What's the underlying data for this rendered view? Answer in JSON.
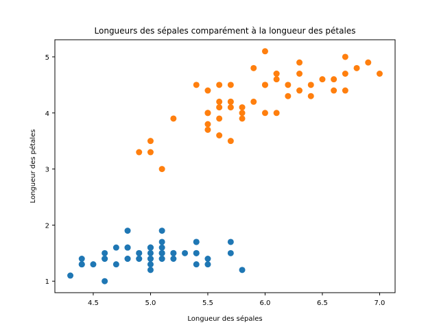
{
  "chart_data": {
    "type": "scatter",
    "title": "Longueurs des sépales comparément à la longueur des pétales",
    "xlabel": "Longueur des sépales",
    "ylabel": "Longueur des pétales",
    "xlim": [
      4.165,
      7.135
    ],
    "ylim": [
      0.795,
      5.305
    ],
    "x_ticks": [
      4.5,
      5.0,
      5.5,
      6.0,
      6.5,
      7.0
    ],
    "x_tick_labels": [
      "4.5",
      "5.0",
      "5.5",
      "6.0",
      "6.5",
      "7.0"
    ],
    "y_ticks": [
      1,
      2,
      3,
      4,
      5
    ],
    "y_tick_labels": [
      "1",
      "2",
      "3",
      "4",
      "5"
    ],
    "grid": false,
    "series": [
      {
        "color": "#1f77b4",
        "x": [
          5.1,
          4.9,
          4.7,
          4.6,
          5.0,
          5.4,
          4.6,
          5.0,
          4.4,
          4.9,
          5.4,
          4.8,
          4.8,
          4.3,
          5.8,
          5.7,
          5.4,
          5.1,
          5.7,
          5.1,
          5.4,
          5.1,
          4.6,
          5.1,
          4.8,
          5.0,
          5.0,
          5.2,
          5.2,
          4.7,
          4.8,
          5.4,
          5.2,
          5.5,
          4.9,
          5.0,
          5.5,
          4.9,
          4.4,
          5.1,
          5.0,
          4.5,
          4.4,
          5.0,
          5.1,
          4.8,
          5.1,
          4.6,
          5.3,
          5.0
        ],
        "y": [
          1.4,
          1.4,
          1.3,
          1.5,
          1.4,
          1.7,
          1.4,
          1.5,
          1.4,
          1.5,
          1.5,
          1.6,
          1.4,
          1.1,
          1.2,
          1.5,
          1.3,
          1.4,
          1.7,
          1.5,
          1.7,
          1.5,
          1.0,
          1.7,
          1.9,
          1.6,
          1.6,
          1.5,
          1.4,
          1.6,
          1.6,
          1.5,
          1.5,
          1.4,
          1.5,
          1.2,
          1.3,
          1.4,
          1.3,
          1.5,
          1.3,
          1.3,
          1.3,
          1.6,
          1.9,
          1.4,
          1.6,
          1.4,
          1.5,
          1.4
        ]
      },
      {
        "color": "#ff7f0e",
        "x": [
          7.0,
          6.4,
          6.9,
          5.5,
          6.5,
          5.7,
          6.3,
          4.9,
          6.6,
          5.2,
          5.0,
          5.9,
          6.0,
          6.1,
          5.6,
          6.7,
          5.6,
          5.8,
          6.2,
          5.6,
          5.9,
          6.1,
          6.3,
          6.1,
          6.4,
          6.6,
          6.8,
          6.7,
          6.0,
          5.7,
          5.5,
          5.5,
          5.8,
          6.0,
          5.4,
          6.0,
          6.7,
          6.3,
          5.6,
          5.5,
          5.5,
          6.1,
          5.8,
          5.0,
          5.6,
          5.7,
          5.7,
          6.2,
          5.1,
          5.7
        ],
        "y": [
          4.7,
          4.5,
          4.9,
          4.0,
          4.6,
          4.5,
          4.7,
          3.3,
          4.6,
          3.9,
          3.5,
          4.2,
          4.0,
          4.7,
          3.6,
          4.4,
          4.5,
          4.1,
          4.5,
          3.9,
          4.8,
          4.0,
          4.9,
          4.7,
          4.3,
          4.4,
          4.8,
          5.0,
          4.5,
          3.5,
          3.8,
          3.7,
          3.9,
          5.1,
          4.5,
          4.5,
          4.7,
          4.4,
          4.1,
          4.0,
          4.4,
          4.6,
          4.0,
          3.3,
          4.2,
          4.2,
          4.2,
          4.3,
          3.0,
          4.1
        ]
      }
    ]
  }
}
